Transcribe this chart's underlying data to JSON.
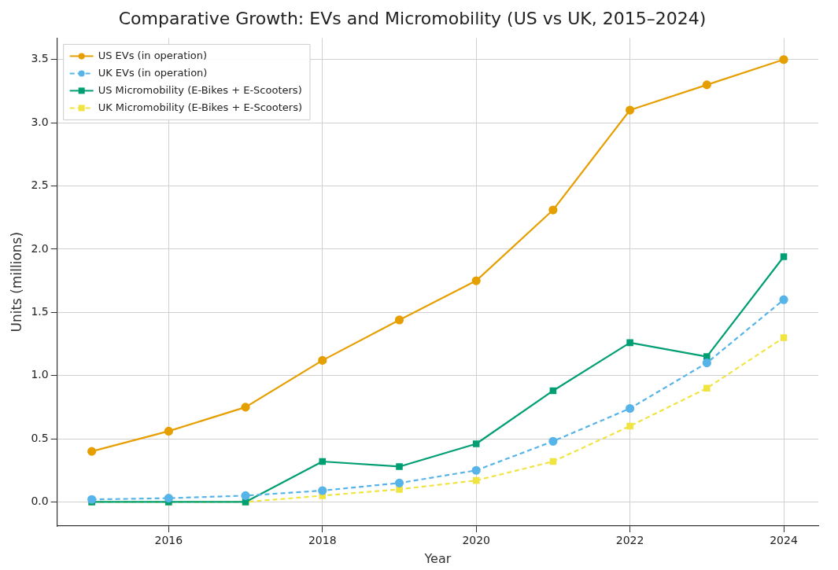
{
  "chart_data": {
    "type": "line",
    "title": "Comparative Growth: EVs and Micromobility (US vs UK, 2015–2024)",
    "xlabel": "Year",
    "ylabel": "Units (millions)",
    "x": [
      2015,
      2016,
      2017,
      2018,
      2019,
      2020,
      2021,
      2022,
      2023,
      2024
    ],
    "series": [
      {
        "name": "US EVs (in operation)",
        "color": "#e69f00",
        "marker": "circle",
        "line_style": "solid",
        "values": [
          0.4,
          0.56,
          0.75,
          1.12,
          1.44,
          1.75,
          2.31,
          3.1,
          3.3,
          3.5
        ]
      },
      {
        "name": "UK EVs (in operation)",
        "color": "#56b4e9",
        "marker": "circle",
        "line_style": "dashed",
        "values": [
          0.02,
          0.03,
          0.05,
          0.09,
          0.15,
          0.25,
          0.48,
          0.74,
          1.1,
          1.6
        ]
      },
      {
        "name": "US Micromobility (E-Bikes + E-Scooters)",
        "color": "#009e73",
        "marker": "square",
        "line_style": "solid",
        "values": [
          0.0,
          0.0,
          0.0,
          0.32,
          0.28,
          0.46,
          0.88,
          1.26,
          1.15,
          1.94
        ]
      },
      {
        "name": "UK Micromobility (E-Bikes + E-Scooters)",
        "color": "#f0e442",
        "marker": "square",
        "line_style": "dashed",
        "values": [
          0.0,
          0.0,
          0.0,
          0.05,
          0.1,
          0.17,
          0.32,
          0.6,
          0.9,
          1.3
        ]
      }
    ],
    "xlim": [
      2014.55,
      2024.45
    ],
    "xticks": [
      2016,
      2018,
      2020,
      2022,
      2024
    ],
    "ylim": [
      -0.19,
      3.67
    ],
    "yticks": [
      {
        "value": 0,
        "label": "0.0"
      },
      {
        "value": 0.5,
        "label": "0.5"
      },
      {
        "value": 1,
        "label": "1.0"
      },
      {
        "value": 1.5,
        "label": "1.5"
      },
      {
        "value": 2,
        "label": "2.0"
      },
      {
        "value": 2.5,
        "label": "2.5"
      },
      {
        "value": 3,
        "label": "3.0"
      },
      {
        "value": 3.5,
        "label": "3.5"
      }
    ],
    "grid": true,
    "legend": "top left"
  }
}
